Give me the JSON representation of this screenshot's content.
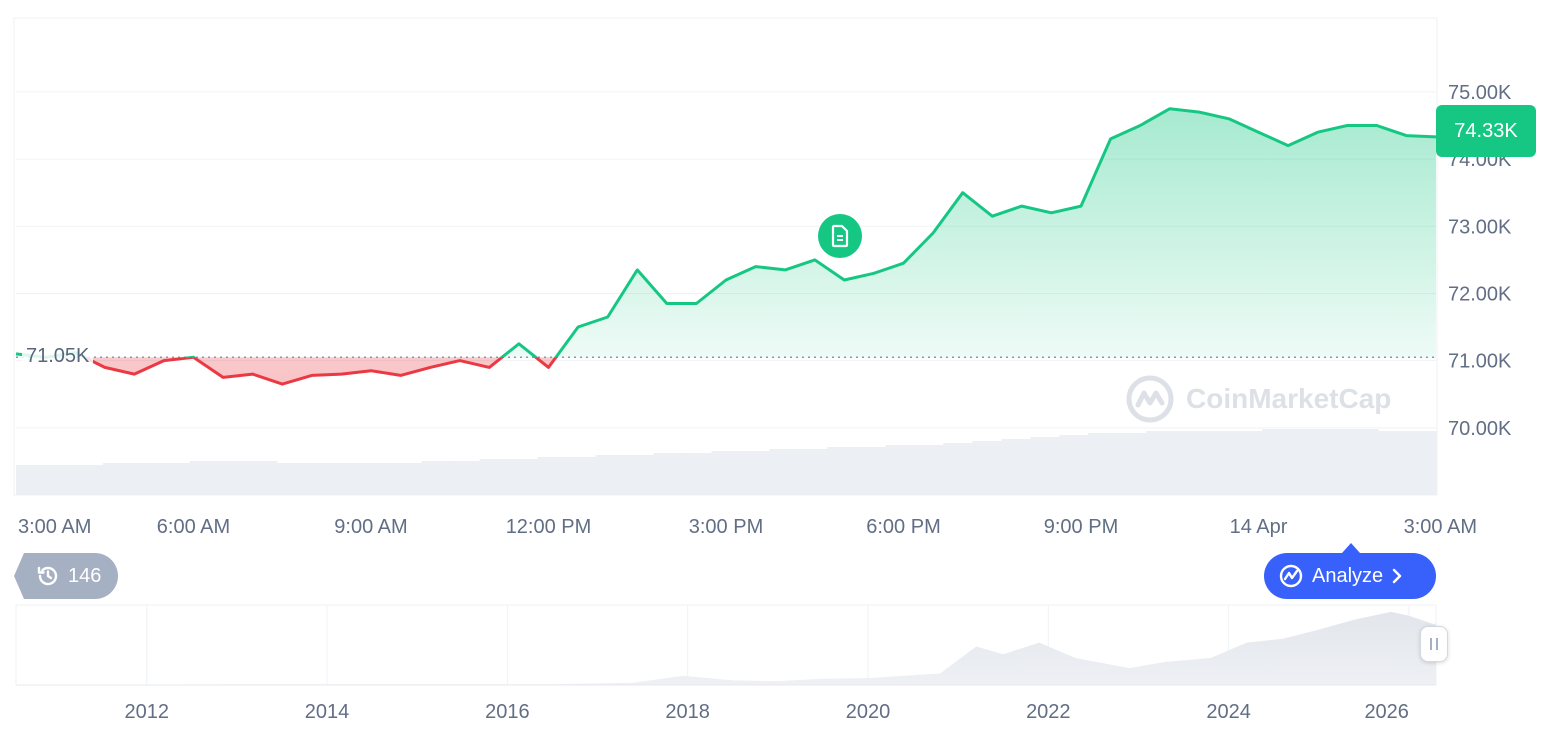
{
  "chart_data": {
    "type": "line",
    "baseline": 71.05,
    "baseline_label": "71.05K",
    "current_price_label": "74.33K",
    "y_ticks": [
      "70.00K",
      "71.00K",
      "72.00K",
      "73.00K",
      "74.00K",
      "75.00K"
    ],
    "y_tick_values": [
      70,
      71,
      72,
      73,
      74,
      75
    ],
    "ylim": [
      69.0,
      76.1
    ],
    "x_tick_labels": [
      "3:00 AM",
      "6:00 AM",
      "9:00 AM",
      "12:00 PM",
      "3:00 PM",
      "6:00 PM",
      "9:00 PM",
      "14 Apr",
      "3:00 AM"
    ],
    "x_tick_hours": [
      0,
      3,
      6,
      9,
      12,
      15,
      18,
      21,
      24
    ],
    "xlim_hours": [
      0,
      24
    ],
    "series": [
      {
        "x": [
          0,
          0.5,
          1.0,
          1.5,
          2.0,
          2.5,
          3.0,
          3.5,
          4.0,
          4.5,
          5.0,
          5.5,
          6.0,
          6.5,
          7.0,
          7.5,
          8.0,
          8.5,
          9.0,
          9.5,
          10.0,
          10.5,
          11.0,
          11.5,
          12.0,
          12.5,
          13.0,
          13.5,
          14.0,
          14.5,
          15.0,
          15.5,
          16.0,
          16.5,
          17.0,
          17.5,
          18.0,
          18.5,
          19.0,
          19.5,
          20.0,
          20.5,
          21.0,
          21.5,
          22.0,
          22.5,
          23.0,
          23.5,
          24.0
        ],
        "y": [
          71.1,
          71.05,
          71.12,
          70.9,
          70.8,
          71.0,
          71.05,
          70.75,
          70.8,
          70.65,
          70.78,
          70.8,
          70.85,
          70.78,
          70.9,
          71.0,
          70.9,
          71.25,
          70.9,
          71.5,
          71.65,
          72.35,
          71.85,
          71.85,
          72.2,
          72.4,
          72.35,
          72.5,
          72.2,
          72.3,
          72.45,
          72.9,
          73.5,
          73.15,
          73.3,
          73.2,
          73.3,
          74.3,
          74.5,
          74.75,
          74.7,
          74.6,
          74.4,
          74.2,
          74.4,
          74.5,
          74.5,
          74.35,
          74.33
        ]
      }
    ],
    "volume": [
      0.15,
      0.15,
      0.15,
      0.16,
      0.16,
      0.16,
      0.17,
      0.17,
      0.17,
      0.16,
      0.16,
      0.16,
      0.16,
      0.16,
      0.17,
      0.17,
      0.18,
      0.18,
      0.19,
      0.19,
      0.2,
      0.2,
      0.21,
      0.21,
      0.22,
      0.22,
      0.23,
      0.23,
      0.24,
      0.24,
      0.25,
      0.25,
      0.26,
      0.27,
      0.28,
      0.29,
      0.3,
      0.31,
      0.31,
      0.32,
      0.32,
      0.32,
      0.32,
      0.33,
      0.33,
      0.33,
      0.33,
      0.32,
      0.32
    ],
    "overview": {
      "year_labels": [
        "2012",
        "2014",
        "2016",
        "2018",
        "2020",
        "2022",
        "2024",
        "2026"
      ],
      "year_values": [
        2012,
        2014,
        2016,
        2018,
        2020,
        2022,
        2024,
        2026
      ],
      "xlim": [
        2010.55,
        2026.3
      ],
      "x": [
        2010.55,
        2013.0,
        2016.5,
        2017.4,
        2017.95,
        2018.5,
        2019.0,
        2019.5,
        2020.0,
        2020.8,
        2021.2,
        2021.5,
        2021.9,
        2022.3,
        2022.9,
        2023.3,
        2023.8,
        2024.2,
        2024.6,
        2025.0,
        2025.4,
        2025.8,
        2026.0,
        2026.3
      ],
      "y": [
        0.0,
        0.01,
        0.01,
        0.03,
        0.12,
        0.06,
        0.05,
        0.08,
        0.09,
        0.15,
        0.5,
        0.4,
        0.55,
        0.35,
        0.22,
        0.3,
        0.35,
        0.55,
        0.6,
        0.72,
        0.85,
        0.95,
        0.9,
        0.78
      ]
    }
  },
  "ui": {
    "history_count": "146",
    "analyze_label": "Analyze",
    "watermark": "CoinMarketCap",
    "colors": {
      "up": "#16c784",
      "down": "#ea3943",
      "accent": "#3861fb",
      "history_pill": "#a6b0c3"
    }
  }
}
